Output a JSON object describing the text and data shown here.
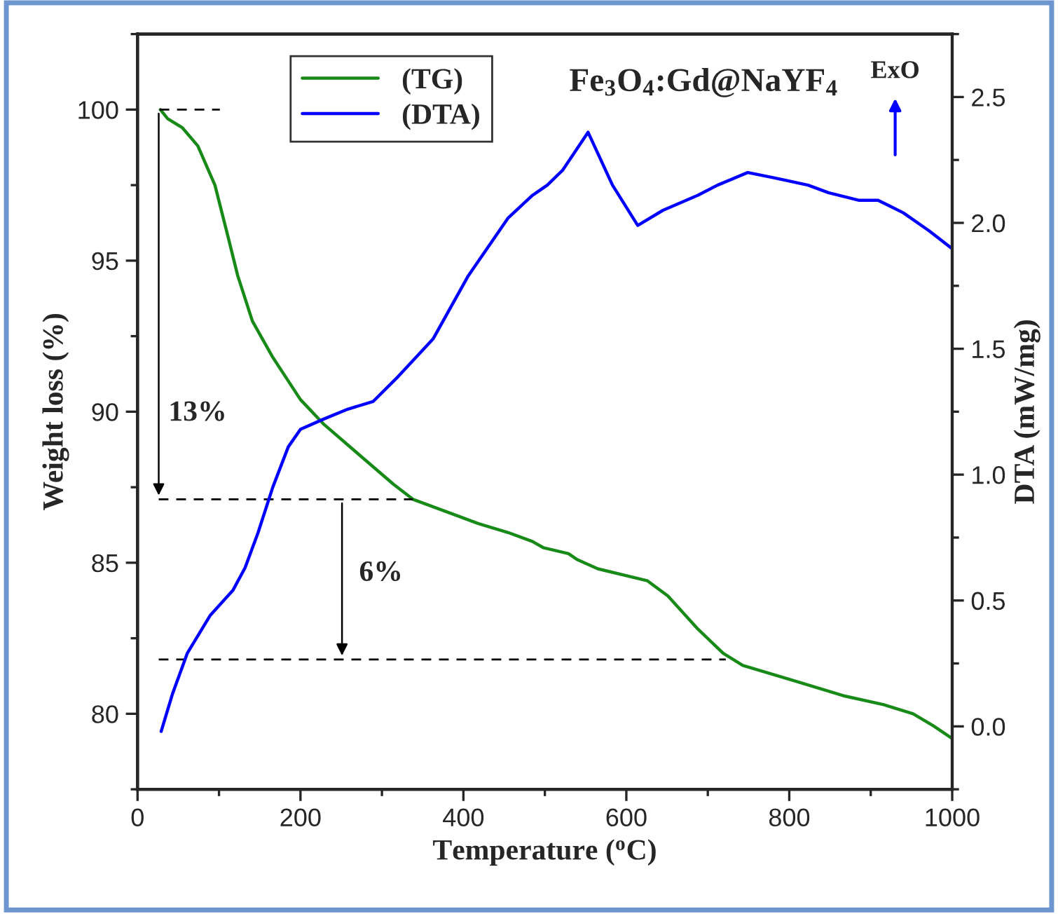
{
  "chart_data": {
    "type": "line",
    "title": "Fe$_{3}$O$_{4}$:Gd@NaYF$_{4}$",
    "xlabel": "Temperature ($^{o}$C)",
    "ylabel": "Weight loss (%)",
    "y2label": "DTA (mW/mg)",
    "xlim": [
      0,
      1000
    ],
    "xticks": [
      0,
      200,
      400,
      600,
      800,
      1000
    ],
    "ylim": [
      77.5,
      102.5
    ],
    "yticks": [
      80,
      85,
      90,
      95,
      100
    ],
    "y2lim": [
      -0.25,
      2.75
    ],
    "y2ticks": [
      {
        "value": 0,
        "label": "0.0"
      },
      0.5,
      {
        "value": 1,
        "label": "1.0"
      },
      1.5,
      {
        "value": 2,
        "label": "2.0"
      },
      2.5
    ],
    "legend": "top left",
    "grid": false,
    "series": [
      {
        "name": "(TG)",
        "color": "#188a18",
        "x": [
          28,
          37,
          55,
          74,
          95,
          111,
          123,
          141,
          166,
          200,
          228,
          271,
          314,
          338,
          388,
          418,
          455,
          485,
          498,
          529,
          540,
          565,
          626,
          651,
          688,
          719,
          743,
          805,
          866,
          916,
          952,
          977,
          999
        ],
        "values": [
          100,
          99.7,
          99.4,
          98.8,
          97.5,
          95.8,
          94.5,
          93.0,
          91.8,
          90.4,
          89.6,
          88.6,
          87.6,
          87.1,
          86.6,
          86.3,
          86.0,
          85.7,
          85.5,
          85.3,
          85.1,
          84.8,
          84.4,
          83.9,
          82.8,
          82.0,
          81.6,
          81.1,
          80.6,
          80.3,
          80.0,
          79.6,
          79.2
        ]
      },
      {
        "name": "(DTA)",
        "color": "#0000ff",
        "axis": "y2",
        "x": [
          29,
          43,
          61,
          89,
          117,
          132,
          148,
          166,
          185,
          200,
          228,
          258,
          289,
          320,
          363,
          406,
          455,
          485,
          503,
          522,
          553,
          583,
          614,
          645,
          688,
          712,
          749,
          780,
          823,
          848,
          885,
          909,
          940,
          971,
          999
        ],
        "values": [
          -0.02,
          0.13,
          0.29,
          0.44,
          0.54,
          0.63,
          0.77,
          0.95,
          1.11,
          1.18,
          1.22,
          1.26,
          1.29,
          1.39,
          1.54,
          1.79,
          2.02,
          2.11,
          2.15,
          2.21,
          2.36,
          2.15,
          1.99,
          2.05,
          2.11,
          2.15,
          2.2,
          2.18,
          2.15,
          2.12,
          2.09,
          2.09,
          2.04,
          1.97,
          1.9
        ]
      },
      {
        "color": "#000000",
        "line_style": "dashed",
        "x": [
          27,
          101
        ],
        "values": [
          100,
          100
        ]
      },
      {
        "color": "#000000",
        "line_style": "dashed",
        "x": [
          26,
          338
        ],
        "values": [
          87.1,
          87.1
        ]
      },
      {
        "color": "#000000",
        "line_style": "dashed",
        "x": [
          26,
          722
        ],
        "values": [
          81.8,
          81.8
        ]
      }
    ],
    "annotations": [
      {
        "text": "13%",
        "x": 26,
        "y": 87.1
      },
      {
        "text": "6%",
        "x": 251,
        "y": 81.8
      },
      "ExO"
    ]
  }
}
